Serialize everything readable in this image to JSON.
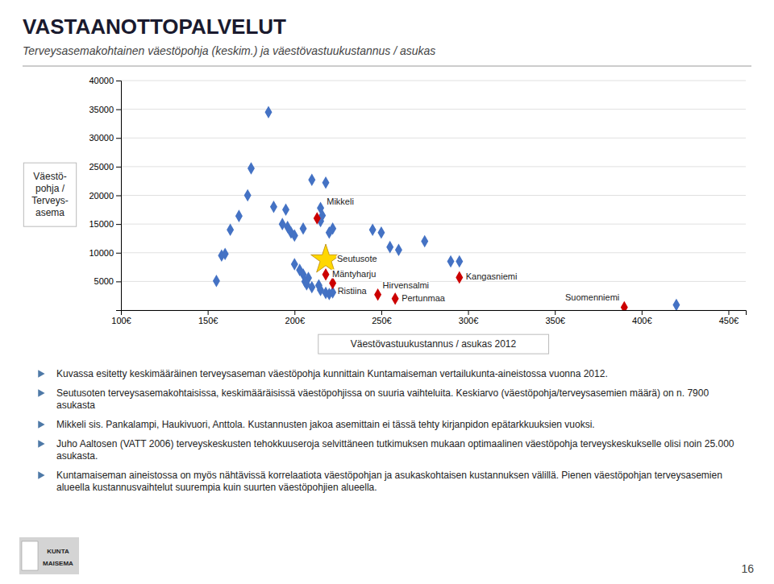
{
  "chart_data": {
    "type": "scatter",
    "title": "VASTAANOTTOPALVELUT",
    "subtitle": "Terveysasemakohtainen väestöpohja (keskim.) ja väestövastuukustannus / asukas",
    "xlabel": "Väestövastuukustannus / asukas 2012",
    "ylabel": "Väestö-\npohja /\nTerveys-\nasema",
    "xlim": [
      100,
      460
    ],
    "ylim": [
      0,
      40000
    ],
    "xticks": [
      {
        "value": 100,
        "label": "100€"
      },
      {
        "value": 150,
        "label": "150€"
      },
      {
        "value": 200,
        "label": "200€"
      },
      {
        "value": 250,
        "label": "250€"
      },
      {
        "value": 300,
        "label": "300€"
      },
      {
        "value": 350,
        "label": "350€"
      },
      {
        "value": 400,
        "label": "400€"
      },
      {
        "value": 450,
        "label": "450€"
      }
    ],
    "yticks": [
      {
        "value": 0,
        "label": null
      },
      5000,
      10000,
      15000,
      20000,
      25000,
      30000,
      35000,
      40000
    ],
    "grid": "y",
    "series": [
      {
        "color": "#4472C4",
        "marker": "diamond",
        "x": [
          185,
          175,
          173,
          168,
          163,
          158,
          160,
          155,
          188,
          195,
          193,
          196,
          198,
          200,
          205,
          210,
          218,
          215,
          216,
          215,
          220,
          222,
          200,
          203,
          205,
          208,
          206,
          207,
          210,
          214,
          215,
          218,
          220,
          222,
          245,
          250,
          255,
          260,
          275,
          290,
          295,
          420
        ],
        "values": [
          34500,
          24700,
          20000,
          16400,
          14000,
          9500,
          9800,
          5100,
          18000,
          17500,
          15000,
          14500,
          13500,
          13000,
          14200,
          22700,
          22200,
          17800,
          16500,
          15500,
          13500,
          14200,
          8000,
          7000,
          6200,
          5600,
          5000,
          4500,
          4000,
          4300,
          3500,
          3000,
          2800,
          3100,
          14000,
          13500,
          11000,
          10500,
          12000,
          8500,
          8500,
          900
        ]
      },
      {
        "color": "#CC0000",
        "marker": "diamond",
        "x": [
          213,
          218,
          222,
          248,
          258,
          295,
          390
        ],
        "values": [
          16000,
          6200,
          4700,
          2700,
          2000,
          5700,
          500
        ],
        "labels": [
          "Mikkeli",
          "Mäntyharju",
          "Ristiina",
          "Hirvensalmi",
          "Pertunmaa",
          "Kangasniemi",
          "Suomenniemi"
        ]
      }
    ],
    "star": {
      "x": 218,
      "y": 8800,
      "label": "Seutusote",
      "color": "#FFD700",
      "marker": "star"
    },
    "notes": [
      "Kuvassa esitetty keskimääräinen terveysaseman väestöpohja kunnittain Kuntamaiseman vertailukunta-aineistossa vuonna 2012.",
      "Seutusoten terveysasemakohtaisissa, keskimääräisissä väestöpohjissa on suuria vaihteluita. Keskiarvo (väestöpohja/terveysasemien määrä) on n. 7900 asukasta",
      "Mikkeli sis. Pankalampi, Haukivuori, Anttola. Kustannusten jakoa asemittain ei tässä tehty kirjanpidon epätarkkuuksien vuoksi.",
      "Juho Aaltosen (VATT 2006) terveyskeskusten tehokkuuseroja selvittäneen tutkimuksen mukaan optimaalinen väestöpohja terveyskeskukselle olisi noin 25.000 asukasta.",
      "Kuntamaiseman aineistossa on myös nähtävissä korrelaatiota väestöpohjan ja asukaskohtaisen kustannuksen välillä. Pienen väestöpohjan terveysasemien alueella kustannusvaihtelut suurempia kuin suurten väestöpohjien alueella."
    ],
    "page_number": "16",
    "logo": [
      "KUNTA",
      "MAISEMA"
    ]
  }
}
